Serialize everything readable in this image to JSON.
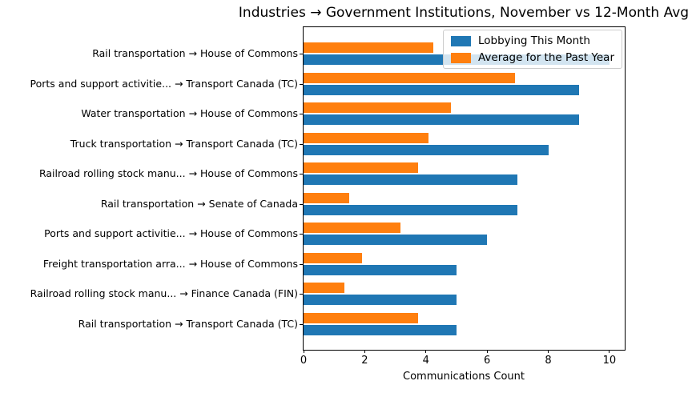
{
  "chart_data": {
    "type": "bar",
    "orientation": "horizontal",
    "title": "Industries → Government Institutions, November vs 12-Month Avg",
    "xlabel": "Communications Count",
    "ylabel": "",
    "xlim": [
      0,
      10.5
    ],
    "xticks": [
      0,
      2,
      4,
      6,
      8,
      10
    ],
    "grid": false,
    "legend_position": "upper right",
    "categories": [
      "Rail transportation → House of Commons",
      "Ports and support activitie... → Transport Canada (TC)",
      "Water transportation → House of Commons",
      "Truck transportation → Transport Canada (TC)",
      "Railroad rolling stock manu... → House of Commons",
      "Rail transportation → Senate of Canada",
      "Ports and support activitie... → House of Commons",
      "Freight transportation arra... → House of Commons",
      "Railroad rolling stock manu... → Finance Canada (FIN)",
      "Rail transportation → Transport Canada (TC)"
    ],
    "series": [
      {
        "name": "Lobbying This Month",
        "color": "#1f77b4",
        "values": [
          10,
          9,
          9,
          8,
          7,
          7,
          6,
          5,
          5,
          5
        ]
      },
      {
        "name": "Average for the Past Year",
        "color": "#ff7f0e",
        "values": [
          4.25,
          6.92,
          4.83,
          4.08,
          3.75,
          1.5,
          3.17,
          1.92,
          1.33,
          3.75
        ]
      }
    ]
  }
}
